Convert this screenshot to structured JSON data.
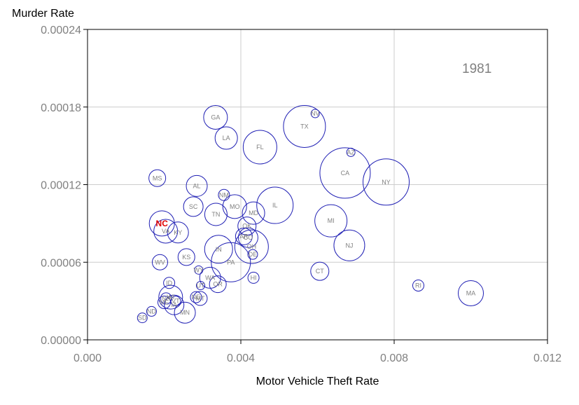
{
  "chart_data": {
    "type": "scatter",
    "title": "",
    "year_label": "1981",
    "xlabel": "Motor Vehicle Theft Rate",
    "ylabel": "Murder Rate",
    "xlim": [
      0,
      0.012
    ],
    "ylim": [
      0,
      0.00024
    ],
    "x_ticks": [
      "0.000",
      "0.004",
      "0.008",
      "0.012"
    ],
    "y_ticks": [
      "0.00000",
      "0.00006",
      "0.00012",
      "0.00018",
      "0.00024"
    ],
    "grid": true,
    "highlight": "NC",
    "colors": {
      "circle": "#1f1fb4",
      "label": "#808080",
      "highlight": "#e00000",
      "grid": "#cccccc"
    },
    "points": [
      {
        "state": "TX",
        "x": 0.00566,
        "y": 0.000165,
        "r": 30
      },
      {
        "state": "CA",
        "x": 0.00672,
        "y": 0.000129,
        "r": 36
      },
      {
        "state": "NY",
        "x": 0.00779,
        "y": 0.000122,
        "r": 33
      },
      {
        "state": "NV",
        "x": 0.00594,
        "y": 0.000175,
        "r": 6
      },
      {
        "state": "AZ",
        "x": 0.00687,
        "y": 0.000145,
        "r": 6
      },
      {
        "state": "GA",
        "x": 0.00334,
        "y": 0.000172,
        "r": 17
      },
      {
        "state": "LA",
        "x": 0.00362,
        "y": 0.000156,
        "r": 16
      },
      {
        "state": "FL",
        "x": 0.0045,
        "y": 0.000149,
        "r": 24
      },
      {
        "state": "MS",
        "x": 0.00182,
        "y": 0.000125,
        "r": 12
      },
      {
        "state": "AL",
        "x": 0.00285,
        "y": 0.000119,
        "r": 15
      },
      {
        "state": "NM",
        "x": 0.00356,
        "y": 0.000112,
        "r": 8
      },
      {
        "state": "SC",
        "x": 0.00276,
        "y": 0.000103,
        "r": 14
      },
      {
        "state": "IL",
        "x": 0.00489,
        "y": 0.000104,
        "r": 26
      },
      {
        "state": "MO",
        "x": 0.00384,
        "y": 0.000103,
        "r": 17
      },
      {
        "state": "TN",
        "x": 0.00335,
        "y": 9.7e-05,
        "r": 16
      },
      {
        "state": "MD",
        "x": 0.00433,
        "y": 9.8e-05,
        "r": 16
      },
      {
        "state": "MI",
        "x": 0.00635,
        "y": 9.2e-05,
        "r": 23
      },
      {
        "state": "NC",
        "x": 0.00194,
        "y": 9e-05,
        "r": 18
      },
      {
        "state": "OK",
        "x": 0.00416,
        "y": 8.8e-05,
        "r": 13
      },
      {
        "state": "VA",
        "x": 0.00204,
        "y": 8.4e-05,
        "r": 17
      },
      {
        "state": "KY",
        "x": 0.00236,
        "y": 8.3e-05,
        "r": 15
      },
      {
        "state": "CO",
        "x": 0.00419,
        "y": 7.9e-05,
        "r": 14
      },
      {
        "state": "AR",
        "x": 0.00408,
        "y": 8e-05,
        "r": 12
      },
      {
        "state": "NJ",
        "x": 0.00683,
        "y": 7.3e-05,
        "r": 22
      },
      {
        "state": "OH",
        "x": 0.00428,
        "y": 7.2e-05,
        "r": 24
      },
      {
        "state": "IN",
        "x": 0.00342,
        "y": 7e-05,
        "r": 20
      },
      {
        "state": "DE",
        "x": 0.00431,
        "y": 6.6e-05,
        "r": 7
      },
      {
        "state": "PA",
        "x": 0.00374,
        "y": 6e-05,
        "r": 28
      },
      {
        "state": "KS",
        "x": 0.00258,
        "y": 6.4e-05,
        "r": 12
      },
      {
        "state": "WV",
        "x": 0.00189,
        "y": 6e-05,
        "r": 11
      },
      {
        "state": "CT",
        "x": 0.00606,
        "y": 5.3e-05,
        "r": 13
      },
      {
        "state": "WY",
        "x": 0.0029,
        "y": 5.4e-05,
        "r": 6
      },
      {
        "state": "WA",
        "x": 0.0032,
        "y": 4.8e-05,
        "r": 15
      },
      {
        "state": "HI",
        "x": 0.00433,
        "y": 4.8e-05,
        "r": 8
      },
      {
        "state": "ID",
        "x": 0.00213,
        "y": 4.4e-05,
        "r": 8
      },
      {
        "state": "OR",
        "x": 0.0034,
        "y": 4.3e-05,
        "r": 12
      },
      {
        "state": "RI",
        "x": 0.00863,
        "y": 4.2e-05,
        "r": 8
      },
      {
        "state": "UT",
        "x": 0.00295,
        "y": 4.2e-05,
        "r": 6
      },
      {
        "state": "MA",
        "x": 0.01,
        "y": 3.6e-05,
        "r": 18
      },
      {
        "state": "NE",
        "x": 0.00283,
        "y": 3.3e-05,
        "r": 8
      },
      {
        "state": "MT",
        "x": 0.00294,
        "y": 3.2e-05,
        "r": 10
      },
      {
        "state": "NH",
        "x": 0.00205,
        "y": 3.2e-05,
        "r": 8
      },
      {
        "state": "WI",
        "x": 0.00217,
        "y": 3.3e-05,
        "r": 17
      },
      {
        "state": "IA",
        "x": 0.00226,
        "y": 2.7e-05,
        "r": 14
      },
      {
        "state": "ME",
        "x": 0.002,
        "y": 2.9e-05,
        "r": 9
      },
      {
        "state": "VT",
        "x": 0.0023,
        "y": 3e-05,
        "r": 7
      },
      {
        "state": "MN",
        "x": 0.00254,
        "y": 2.1e-05,
        "r": 15
      },
      {
        "state": "ND",
        "x": 0.00167,
        "y": 2.2e-05,
        "r": 7
      },
      {
        "state": "SD",
        "x": 0.00143,
        "y": 1.7e-05,
        "r": 7
      }
    ]
  }
}
